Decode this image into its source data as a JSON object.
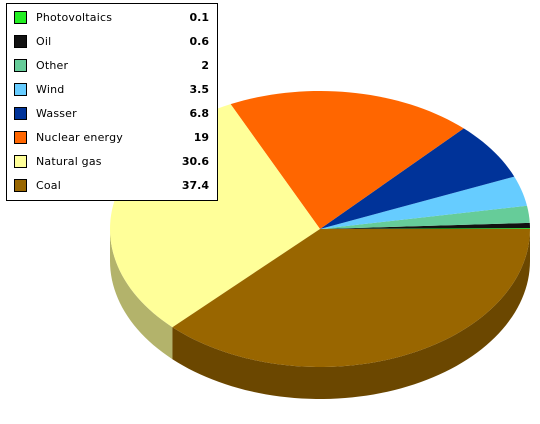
{
  "chart_data": {
    "type": "pie",
    "three_d": true,
    "start": "3 o'clock, counter-clockwise",
    "legend_position": "top-left",
    "slices": [
      {
        "label": "Photovoltaics",
        "value": 0.1,
        "color": "#22ee22"
      },
      {
        "label": "Oil",
        "value": 0.6,
        "color": "#111111"
      },
      {
        "label": "Other",
        "value": 2,
        "color": "#66cc99"
      },
      {
        "label": "Wind",
        "value": 3.5,
        "color": "#66ccff"
      },
      {
        "label": "Wasser",
        "value": 6.8,
        "color": "#003399"
      },
      {
        "label": "Nuclear energy",
        "value": 19,
        "color": "#ff6600"
      },
      {
        "label": "Natural gas",
        "value": 30.6,
        "color": "#ffff99"
      },
      {
        "label": "Coal",
        "value": 37.4,
        "color": "#996600"
      }
    ],
    "values_text": [
      "0.1",
      "0.6",
      "2",
      "3.5",
      "6.8",
      "19",
      "30.6",
      "37.4"
    ]
  }
}
